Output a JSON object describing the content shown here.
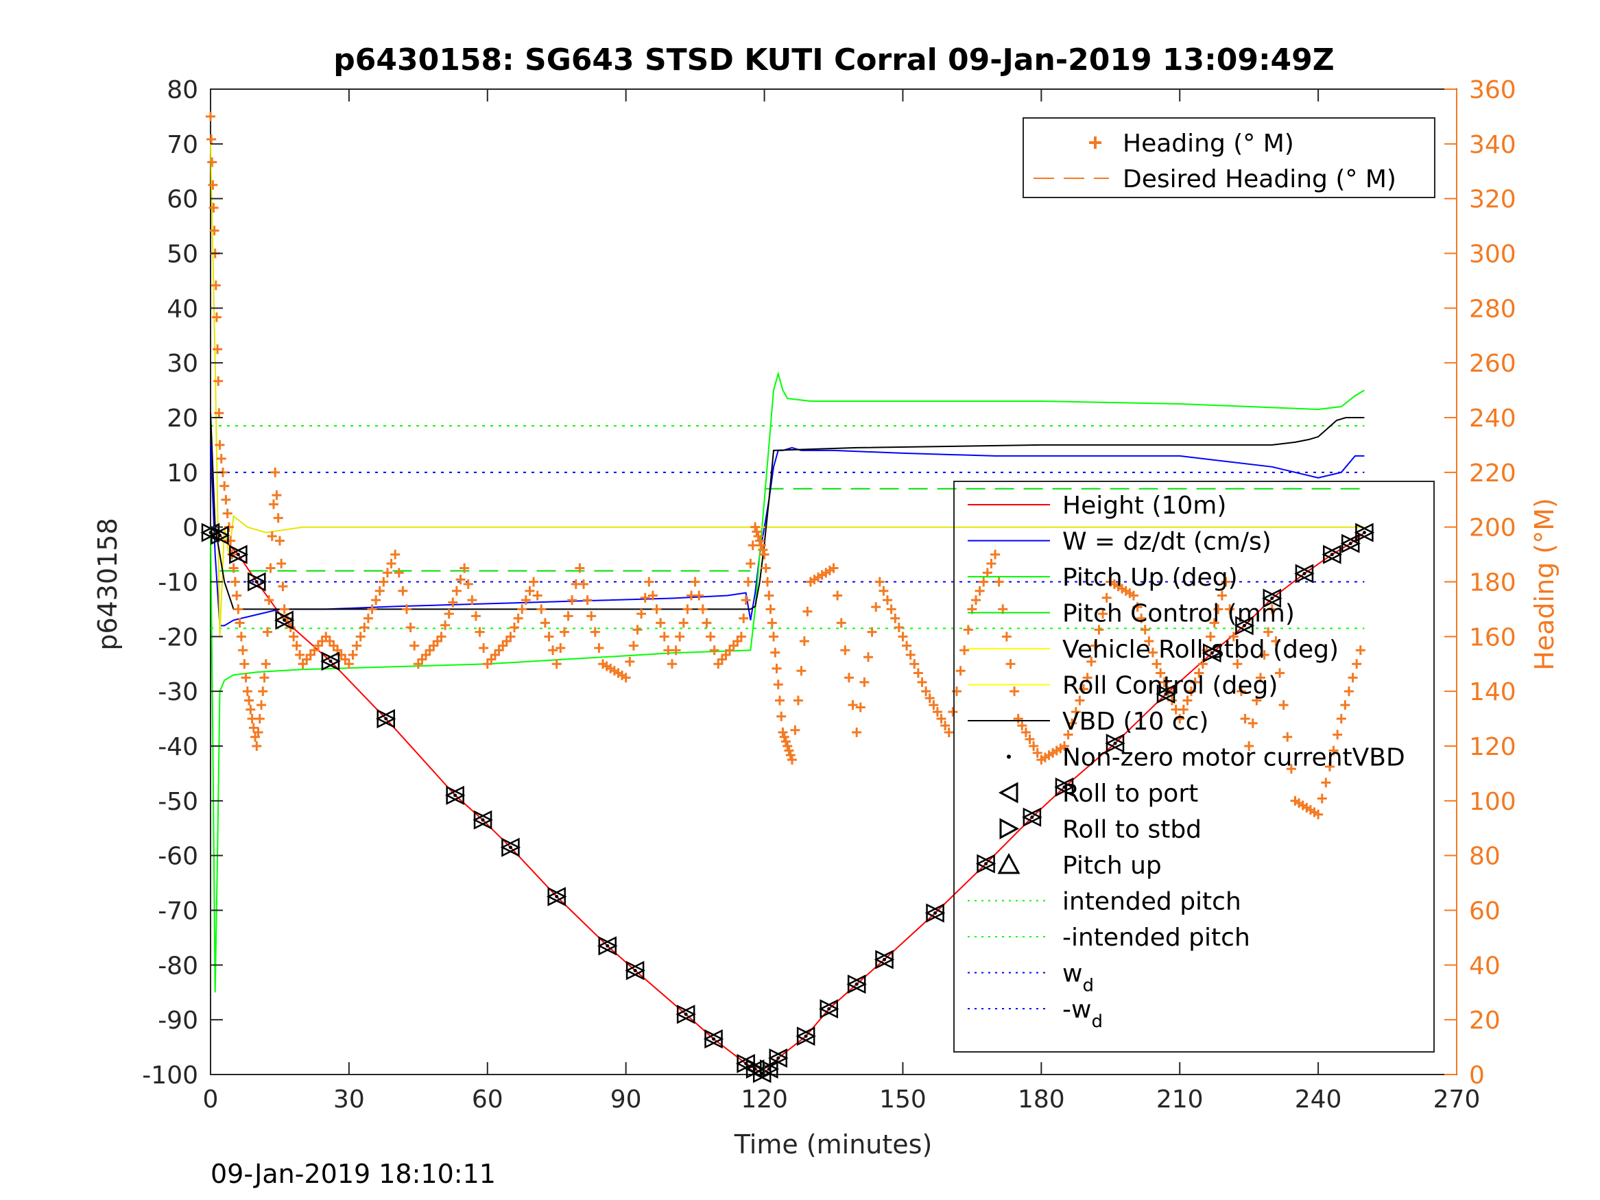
{
  "figure": {
    "title": "p6430158: SG643 STSD KUTI Corral 09-Jan-2019 13:09:49Z",
    "footer": "09-Jan-2019 18:10:11"
  },
  "chart_data": {
    "type": "line",
    "title": "p6430158: SG643 STSD KUTI Corral 09-Jan-2019 13:09:49Z",
    "xlabel": "Time (minutes)",
    "ylabel": "p6430158",
    "y2label": "Heading (°M)",
    "xlim": [
      0,
      270
    ],
    "ylim": [
      -100,
      80
    ],
    "y2lim": [
      0,
      360
    ],
    "xticks": [
      0,
      30,
      60,
      90,
      120,
      150,
      180,
      210,
      240,
      270
    ],
    "yticks": [
      80,
      70,
      60,
      50,
      40,
      30,
      20,
      10,
      0,
      -10,
      -20,
      -30,
      -40,
      -50,
      -60,
      -70,
      -80,
      -90,
      -100
    ],
    "y2ticks": [
      360,
      340,
      320,
      300,
      280,
      260,
      240,
      220,
      200,
      180,
      160,
      140,
      120,
      100,
      80,
      60,
      40,
      20,
      0
    ],
    "grid": false,
    "colors": {
      "height": "#ff0000",
      "w": "#0000ff",
      "pitch_up": "#00ff00",
      "pitch_control": "#00ee00",
      "vehicle_roll": "#ffff00",
      "roll_control": "#ffff00",
      "vbd": "#000000",
      "heading": "#f47920",
      "intended_pitch": "#00ff00",
      "w_d": "#0000ff"
    },
    "legend_right": {
      "placement": "right",
      "items": [
        {
          "label": "Height (10m)",
          "style": "solid",
          "color": "#ff0000"
        },
        {
          "label": "W = dz/dt (cm/s)",
          "style": "solid",
          "color": "#0000ff"
        },
        {
          "label": "Pitch Up (deg)",
          "style": "solid",
          "color": "#00ff00"
        },
        {
          "label": "Pitch Control (mm)",
          "style": "solid",
          "color": "#00ee00"
        },
        {
          "label": "Vehicle Roll stbd (deg)",
          "style": "solid",
          "color": "#ffff00"
        },
        {
          "label": "Roll Control (deg)",
          "style": "solid",
          "color": "#ffff00"
        },
        {
          "label": "VBD (10 cc)",
          "style": "solid",
          "color": "#000000"
        },
        {
          "label": "Non-zero motor currentVBD",
          "style": "dot",
          "color": "#000000"
        },
        {
          "label": "Roll to port",
          "style": "tri-left",
          "color": "#000000"
        },
        {
          "label": "Roll to stbd",
          "style": "tri-right",
          "color": "#000000"
        },
        {
          "label": "Pitch up",
          "style": "tri-up",
          "color": "#000000"
        },
        {
          "label": "intended pitch",
          "style": "dotted",
          "color": "#00ff00"
        },
        {
          "label": "-intended pitch",
          "style": "dotted",
          "color": "#00ff00"
        },
        {
          "label": "w",
          "sub": "d",
          "style": "dotted",
          "color": "#0000ff"
        },
        {
          "label": "-w",
          "sub": "d",
          "style": "dotted",
          "color": "#0000ff"
        }
      ]
    },
    "legend_top": {
      "placement": "top-right",
      "items": [
        {
          "label": "Heading (° M)",
          "style": "plus",
          "color": "#f47920"
        },
        {
          "label": "Desired Heading (° M)",
          "style": "dashed",
          "color": "#f47920"
        }
      ]
    },
    "reference_lines": {
      "intended_pitch": 18.5,
      "neg_intended_pitch": -18.5,
      "w_d": 10,
      "neg_w_d": -10,
      "pitch_control_dive": -8,
      "pitch_control_climb": 7
    },
    "series": [
      {
        "name": "Height (10m)",
        "x": [
          0,
          2,
          6,
          10,
          16,
          26,
          38,
          53,
          59,
          65,
          75,
          86,
          92,
          103,
          109,
          116,
          118,
          119.5,
          121,
          123,
          129,
          134,
          140,
          146,
          157,
          168,
          178,
          185,
          196,
          207,
          217,
          224,
          230,
          237,
          243,
          247,
          250
        ],
        "y": [
          -1,
          -1.5,
          -5,
          -10,
          -17,
          -24.5,
          -35,
          -49,
          -53.5,
          -58.5,
          -67.5,
          -76.5,
          -81,
          -89,
          -93.5,
          -98,
          -99,
          -99.8,
          -99,
          -97,
          -93,
          -88,
          -83.5,
          -79,
          -70.5,
          -61.5,
          -53,
          -47.5,
          -39.5,
          -30.5,
          -23,
          -18,
          -13,
          -8.5,
          -5,
          -3,
          -1
        ]
      },
      {
        "name": "W = dz/dt (cm/s)",
        "x": [
          0,
          1,
          2,
          3,
          5,
          10,
          15,
          25,
          40,
          60,
          80,
          100,
          112,
          116,
          117,
          118,
          119,
          120,
          121,
          122,
          123,
          124,
          126,
          128,
          135,
          150,
          170,
          190,
          210,
          230,
          240,
          245,
          248,
          250
        ],
        "y": [
          15,
          -5,
          -18,
          -18,
          -17,
          -16,
          -15,
          -15,
          -14.5,
          -14,
          -13.5,
          -13,
          -12.5,
          -12,
          -17,
          -12,
          -5,
          0,
          5,
          11,
          14,
          14,
          14.5,
          14,
          14,
          13.5,
          13,
          13,
          13,
          11,
          9,
          10,
          13,
          13
        ]
      },
      {
        "name": "Pitch Up (deg)",
        "x": [
          0,
          0.5,
          1,
          1.5,
          2,
          3,
          5,
          10,
          20,
          40,
          60,
          80,
          100,
          117,
          118,
          119,
          120,
          121,
          122,
          123,
          124,
          125,
          130,
          150,
          180,
          210,
          240,
          245,
          248,
          250
        ],
        "y": [
          0,
          -40,
          -85,
          -60,
          -30,
          -28,
          -27,
          -26.5,
          -26,
          -25.5,
          -25,
          -24,
          -23,
          -22.5,
          -15,
          -5,
          5,
          15,
          25,
          28,
          25,
          23.5,
          23,
          23,
          23,
          22.5,
          21.5,
          22,
          24,
          25
        ]
      },
      {
        "name": "Vehicle Roll stbd (deg)",
        "x": [
          0,
          1,
          2,
          3,
          4,
          5,
          8,
          12,
          20,
          40,
          60,
          80,
          100,
          120,
          140,
          160,
          180,
          200,
          220,
          240,
          250
        ],
        "y": [
          70,
          30,
          -20,
          0,
          -5,
          2,
          0,
          -1,
          0,
          0,
          0,
          0,
          0,
          0,
          0,
          0,
          0,
          0,
          0,
          0,
          0
        ]
      },
      {
        "name": "VBD (10 cc)",
        "x": [
          0,
          1,
          2,
          3,
          5,
          20,
          60,
          100,
          117,
          118,
          119,
          120,
          121,
          122,
          140,
          180,
          210,
          230,
          235,
          238,
          240,
          242,
          244,
          246,
          250
        ],
        "y": [
          21,
          0,
          -5,
          -10,
          -15,
          -15,
          -15,
          -15,
          -15,
          -14.5,
          -10,
          -3,
          5,
          14,
          14.5,
          15,
          15,
          15,
          15.5,
          16,
          16.5,
          18,
          19.5,
          20,
          20
        ]
      },
      {
        "name": "Heading (° M)",
        "x": [
          0,
          1,
          2,
          4,
          6,
          8,
          10,
          12,
          14,
          16,
          20,
          25,
          30,
          35,
          40,
          45,
          50,
          55,
          60,
          65,
          70,
          75,
          80,
          85,
          90,
          95,
          100,
          105,
          110,
          115,
          118,
          120,
          122,
          124,
          126,
          130,
          135,
          140,
          145,
          150,
          155,
          160,
          165,
          170,
          175,
          180,
          185,
          190,
          195,
          200,
          205,
          210,
          215,
          220,
          225,
          230,
          235,
          240,
          245,
          250
        ],
        "y": [
          350,
          300,
          230,
          200,
          170,
          140,
          120,
          150,
          220,
          170,
          150,
          160,
          150,
          170,
          190,
          150,
          160,
          185,
          150,
          160,
          180,
          150,
          185,
          150,
          145,
          180,
          150,
          180,
          150,
          160,
          200,
          190,
          160,
          125,
          115,
          180,
          185,
          125,
          180,
          160,
          140,
          125,
          170,
          190,
          130,
          115,
          120,
          145,
          180,
          175,
          150,
          130,
          150,
          180,
          120,
          170,
          100,
          95,
          130,
          160
        ]
      }
    ]
  }
}
